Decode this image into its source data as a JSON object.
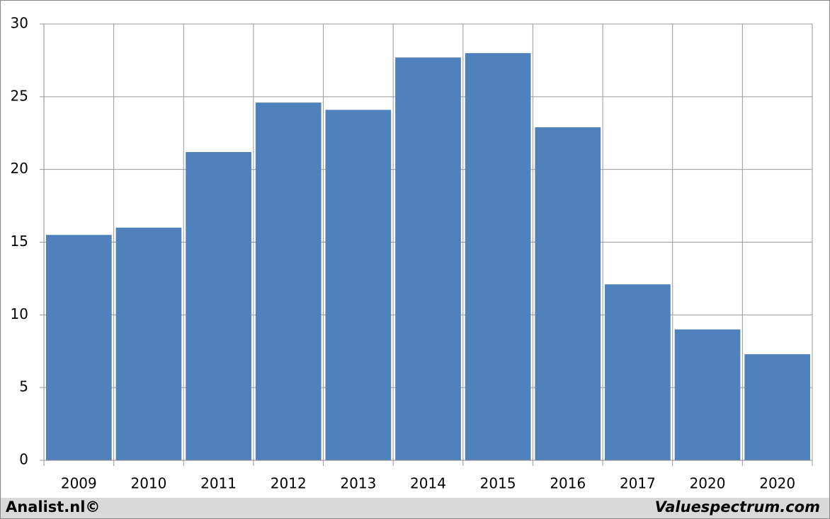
{
  "chart_data": {
    "type": "bar",
    "categories": [
      "2009",
      "2010",
      "2011",
      "2012",
      "2013",
      "2014",
      "2015",
      "2016",
      "2017",
      "2020",
      "2020"
    ],
    "values": [
      15.5,
      16.0,
      21.2,
      24.6,
      24.1,
      27.7,
      28.0,
      22.9,
      12.1,
      9.0,
      7.3
    ],
    "color": "#4f81bd",
    "ylim": [
      0,
      30
    ],
    "yticks": [
      0,
      5,
      10,
      15,
      20,
      25,
      30
    ],
    "grid": true
  },
  "footer": {
    "left": "Analist.nl©",
    "right": "Valuespectrum.com"
  }
}
